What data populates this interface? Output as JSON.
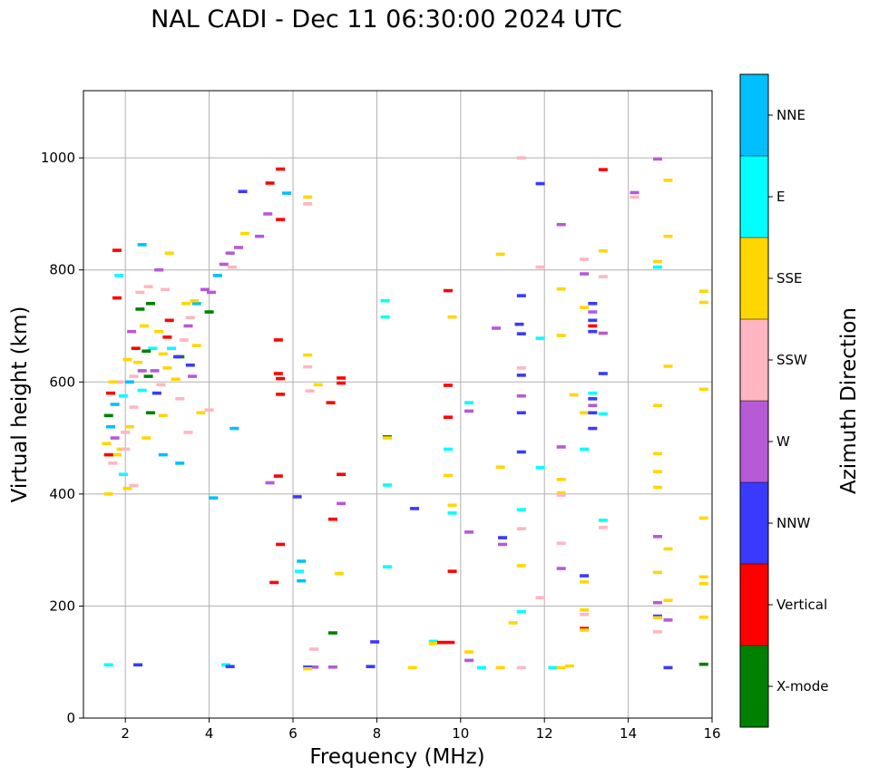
{
  "chart_data": {
    "type": "scatter",
    "title": "NAL CADI - Dec 11 06:30:00 2024 UTC",
    "xlabel": "Frequency (MHz)",
    "ylabel": "Virtual height (km)",
    "xlim": [
      1,
      16
    ],
    "ylim": [
      0,
      1120
    ],
    "xticks": [
      "2",
      "4",
      "6",
      "8",
      "10",
      "12",
      "14",
      "16"
    ],
    "yticks": [
      "0",
      "200",
      "400",
      "600",
      "800",
      "1000"
    ],
    "grid": true,
    "colorbar": {
      "label": "Azimuth Direction",
      "categories": [
        {
          "name": "X-mode",
          "color": "#008000"
        },
        {
          "name": "Vertical",
          "color": "#ff0000"
        },
        {
          "name": "NNW",
          "color": "#3a3aff"
        },
        {
          "name": "W",
          "color": "#b65ad6"
        },
        {
          "name": "SSW",
          "color": "#ffb6c1"
        },
        {
          "name": "SSE",
          "color": "#ffd700"
        },
        {
          "name": "E",
          "color": "#00ffff"
        },
        {
          "name": "NNE",
          "color": "#00bfff"
        }
      ]
    },
    "points": [
      [
        6.2,
        280,
        "NNE"
      ],
      [
        6.2,
        245,
        "NNE"
      ],
      [
        6.15,
        262,
        "E"
      ],
      [
        5.7,
        980,
        "Vertical"
      ],
      [
        5.7,
        890,
        "Vertical"
      ],
      [
        5.85,
        937,
        "NNE"
      ],
      [
        6.35,
        930,
        "SSE"
      ],
      [
        6.35,
        918,
        "SSW"
      ],
      [
        5.65,
        675,
        "Vertical"
      ],
      [
        5.65,
        615,
        "Vertical"
      ],
      [
        5.7,
        606,
        "Vertical"
      ],
      [
        5.7,
        578,
        "Vertical"
      ],
      [
        6.35,
        648,
        "SSE"
      ],
      [
        6.35,
        627,
        "SSW"
      ],
      [
        6.4,
        584,
        "SSW"
      ],
      [
        6.1,
        395,
        "NNW"
      ],
      [
        5.55,
        242,
        "Vertical"
      ],
      [
        5.7,
        310,
        "Vertical"
      ],
      [
        6.6,
        595,
        "SSE"
      ],
      [
        6.9,
        563,
        "Vertical"
      ],
      [
        7.15,
        607,
        "Vertical"
      ],
      [
        7.15,
        598,
        "Vertical"
      ],
      [
        7.15,
        435,
        "Vertical"
      ],
      [
        7.15,
        383,
        "W"
      ],
      [
        6.95,
        355,
        "Vertical"
      ],
      [
        7.1,
        258,
        "SSE"
      ],
      [
        6.95,
        152,
        "X-mode"
      ],
      [
        6.5,
        123,
        "SSW"
      ],
      [
        6.5,
        91,
        "W"
      ],
      [
        6.95,
        91,
        "W"
      ],
      [
        6.35,
        91,
        "NNW"
      ],
      [
        6.35,
        88,
        "SSE"
      ],
      [
        7.85,
        92,
        "NNW"
      ],
      [
        7.95,
        136,
        "NNW"
      ],
      [
        8.2,
        745,
        "E"
      ],
      [
        8.2,
        716,
        "E"
      ],
      [
        8.25,
        502,
        "X-mode"
      ],
      [
        8.25,
        500,
        "SSE"
      ],
      [
        8.25,
        416,
        "E"
      ],
      [
        8.25,
        270,
        "E"
      ],
      [
        8.9,
        374,
        "NNW"
      ],
      [
        8.85,
        90,
        "SSE"
      ],
      [
        9.35,
        137,
        "E"
      ],
      [
        9.35,
        133,
        "SSE"
      ],
      [
        9.55,
        135,
        "Vertical"
      ],
      [
        9.75,
        135,
        "Vertical"
      ],
      [
        9.8,
        262,
        "Vertical"
      ],
      [
        9.8,
        380,
        "SSE"
      ],
      [
        9.8,
        366,
        "E"
      ],
      [
        9.7,
        433,
        "SSE"
      ],
      [
        9.7,
        480,
        "E"
      ],
      [
        9.7,
        537,
        "Vertical"
      ],
      [
        9.7,
        594,
        "Vertical"
      ],
      [
        9.8,
        716,
        "SSE"
      ],
      [
        9.7,
        763,
        "Vertical"
      ],
      [
        10.2,
        563,
        "E"
      ],
      [
        10.2,
        548,
        "W"
      ],
      [
        10.2,
        332,
        "W"
      ],
      [
        10.2,
        118,
        "SSE"
      ],
      [
        10.2,
        103,
        "W"
      ],
      [
        10.5,
        90,
        "E"
      ],
      [
        10.85,
        696,
        "W"
      ],
      [
        10.95,
        828,
        "SSE"
      ],
      [
        10.95,
        448,
        "SSE"
      ],
      [
        11.0,
        322,
        "NNW"
      ],
      [
        11.0,
        310,
        "W"
      ],
      [
        11.25,
        170,
        "SSE"
      ],
      [
        10.95,
        90,
        "SSE"
      ],
      [
        11.45,
        1000,
        "SSW"
      ],
      [
        11.45,
        754,
        "NNW"
      ],
      [
        11.4,
        703,
        "NNW"
      ],
      [
        11.45,
        686,
        "NNW"
      ],
      [
        11.45,
        625,
        "SSW"
      ],
      [
        11.45,
        612,
        "NNW"
      ],
      [
        11.45,
        575,
        "W"
      ],
      [
        11.45,
        545,
        "NNW"
      ],
      [
        11.45,
        475,
        "NNW"
      ],
      [
        11.45,
        372,
        "E"
      ],
      [
        11.45,
        338,
        "SSW"
      ],
      [
        11.45,
        272,
        "SSE"
      ],
      [
        11.45,
        190,
        "E"
      ],
      [
        11.45,
        90,
        "SSW"
      ],
      [
        11.9,
        954,
        "NNW"
      ],
      [
        11.9,
        805,
        "SSW"
      ],
      [
        11.9,
        678,
        "E"
      ],
      [
        11.9,
        447,
        "E"
      ],
      [
        11.9,
        215,
        "SSW"
      ],
      [
        12.2,
        90,
        "E"
      ],
      [
        12.4,
        881,
        "W"
      ],
      [
        12.4,
        766,
        "SSE"
      ],
      [
        12.4,
        683,
        "SSE"
      ],
      [
        12.4,
        484,
        "W"
      ],
      [
        12.4,
        426,
        "SSE"
      ],
      [
        12.4,
        402,
        "SSE"
      ],
      [
        12.4,
        398,
        "SSW"
      ],
      [
        12.4,
        312,
        "SSW"
      ],
      [
        12.4,
        267,
        "W"
      ],
      [
        12.6,
        93,
        "SSE"
      ],
      [
        12.4,
        90,
        "SSE"
      ],
      [
        12.7,
        577,
        "SSE"
      ],
      [
        12.95,
        819,
        "SSW"
      ],
      [
        12.95,
        793,
        "W"
      ],
      [
        12.95,
        733,
        "SSE"
      ],
      [
        12.95,
        545,
        "SSE"
      ],
      [
        12.95,
        480,
        "E"
      ],
      [
        12.95,
        254,
        "NNW"
      ],
      [
        12.95,
        243,
        "SSE"
      ],
      [
        12.95,
        193,
        "SSE"
      ],
      [
        12.95,
        185,
        "SSW"
      ],
      [
        12.95,
        160,
        "Vertical"
      ],
      [
        12.95,
        157,
        "SSE"
      ],
      [
        13.15,
        740,
        "NNW"
      ],
      [
        13.15,
        725,
        "W"
      ],
      [
        13.15,
        710,
        "NNW"
      ],
      [
        13.15,
        700,
        "Vertical"
      ],
      [
        13.15,
        690,
        "NNW"
      ],
      [
        13.15,
        580,
        "E"
      ],
      [
        13.15,
        570,
        "NNW"
      ],
      [
        13.15,
        558,
        "W"
      ],
      [
        13.15,
        545,
        "NNW"
      ],
      [
        13.15,
        517,
        "NNW"
      ],
      [
        13.4,
        979,
        "Vertical"
      ],
      [
        13.4,
        834,
        "SSE"
      ],
      [
        13.4,
        788,
        "SSW"
      ],
      [
        13.4,
        687,
        "W"
      ],
      [
        13.4,
        615,
        "NNW"
      ],
      [
        13.4,
        543,
        "E"
      ],
      [
        13.4,
        353,
        "E"
      ],
      [
        13.4,
        340,
        "SSW"
      ],
      [
        14.15,
        938,
        "W"
      ],
      [
        14.15,
        930,
        "SSW"
      ],
      [
        14.7,
        998,
        "W"
      ],
      [
        14.7,
        815,
        "SSE"
      ],
      [
        14.7,
        805,
        "E"
      ],
      [
        14.7,
        558,
        "SSE"
      ],
      [
        14.7,
        472,
        "SSE"
      ],
      [
        14.7,
        440,
        "SSE"
      ],
      [
        14.7,
        412,
        "SSE"
      ],
      [
        14.7,
        324,
        "W"
      ],
      [
        14.7,
        260,
        "SSE"
      ],
      [
        14.7,
        206,
        "W"
      ],
      [
        14.7,
        182,
        "NNW"
      ],
      [
        14.7,
        179,
        "SSE"
      ],
      [
        14.7,
        154,
        "SSW"
      ],
      [
        14.95,
        960,
        "SSE"
      ],
      [
        14.95,
        860,
        "SSE"
      ],
      [
        14.95,
        628,
        "SSE"
      ],
      [
        14.95,
        302,
        "SSE"
      ],
      [
        14.95,
        210,
        "SSE"
      ],
      [
        14.95,
        175,
        "W"
      ],
      [
        14.95,
        90,
        "NNW"
      ],
      [
        15.8,
        762,
        "SSE"
      ],
      [
        15.8,
        742,
        "SSE"
      ],
      [
        15.8,
        587,
        "SSE"
      ],
      [
        15.8,
        357,
        "SSE"
      ],
      [
        15.8,
        252,
        "SSE"
      ],
      [
        15.8,
        240,
        "SSE"
      ],
      [
        15.8,
        180,
        "SSE"
      ],
      [
        15.8,
        96,
        "X-mode"
      ],
      [
        3.0,
        680,
        "Vertical"
      ],
      [
        3.3,
        645,
        "X-mode"
      ],
      [
        3.5,
        700,
        "W"
      ],
      [
        3.7,
        740,
        "NNE"
      ],
      [
        3.9,
        765,
        "W"
      ],
      [
        4.05,
        760,
        "W"
      ],
      [
        4.2,
        790,
        "NNE"
      ],
      [
        4.35,
        810,
        "W"
      ],
      [
        4.5,
        830,
        "W"
      ],
      [
        4.55,
        805,
        "SSW"
      ],
      [
        4.7,
        840,
        "W"
      ],
      [
        4.85,
        865,
        "SSE"
      ],
      [
        5.2,
        860,
        "W"
      ],
      [
        5.4,
        900,
        "W"
      ],
      [
        5.45,
        955,
        "Vertical"
      ],
      [
        4.0,
        725,
        "X-mode"
      ],
      [
        4.8,
        940,
        "NNW"
      ],
      [
        3.55,
        715,
        "SSW"
      ],
      [
        3.65,
        745,
        "SSE"
      ],
      [
        3.6,
        610,
        "W"
      ],
      [
        3.8,
        545,
        "SSE"
      ],
      [
        4.0,
        550,
        "SSW"
      ],
      [
        3.3,
        570,
        "SSW"
      ],
      [
        3.5,
        510,
        "SSW"
      ],
      [
        3.25,
        645,
        "NNW"
      ],
      [
        2.9,
        540,
        "SSE"
      ],
      [
        2.7,
        620,
        "W"
      ],
      [
        2.55,
        610,
        "X-mode"
      ],
      [
        2.4,
        585,
        "E"
      ],
      [
        2.3,
        635,
        "SSE"
      ],
      [
        2.2,
        555,
        "SSW"
      ],
      [
        2.1,
        520,
        "SSE"
      ],
      [
        2.0,
        510,
        "SSW"
      ],
      [
        1.9,
        480,
        "SSE"
      ],
      [
        1.8,
        470,
        "SSE"
      ],
      [
        1.7,
        455,
        "SSW"
      ],
      [
        1.6,
        470,
        "Vertical"
      ],
      [
        1.65,
        520,
        "NNE"
      ],
      [
        1.55,
        490,
        "SSE"
      ],
      [
        1.75,
        560,
        "NNE"
      ],
      [
        1.85,
        600,
        "SSW"
      ],
      [
        2.05,
        640,
        "SSE"
      ],
      [
        2.15,
        690,
        "W"
      ],
      [
        2.35,
        730,
        "X-mode"
      ],
      [
        2.55,
        770,
        "SSW"
      ],
      [
        2.8,
        800,
        "W"
      ],
      [
        3.05,
        830,
        "SSE"
      ],
      [
        2.4,
        845,
        "NNE"
      ],
      [
        1.8,
        750,
        "Vertical"
      ],
      [
        1.8,
        835,
        "Vertical"
      ],
      [
        1.85,
        790,
        "E"
      ],
      [
        1.6,
        400,
        "SSE"
      ],
      [
        1.6,
        95,
        "E"
      ],
      [
        2.3,
        95,
        "NNW"
      ],
      [
        4.4,
        95,
        "E"
      ],
      [
        4.5,
        92,
        "NNW"
      ],
      [
        4.6,
        517,
        "NNE"
      ],
      [
        5.45,
        420,
        "W"
      ],
      [
        5.65,
        432,
        "Vertical"
      ],
      [
        4.1,
        393,
        "NNE"
      ],
      [
        3.3,
        455,
        "NNE"
      ],
      [
        2.9,
        470,
        "NNE"
      ],
      [
        2.2,
        415,
        "SSW"
      ],
      [
        2.05,
        410,
        "SSE"
      ],
      [
        1.95,
        435,
        "E"
      ],
      [
        2.5,
        500,
        "SSE"
      ],
      [
        2.6,
        545,
        "X-mode"
      ],
      [
        2.75,
        580,
        "NNW"
      ],
      [
        2.85,
        595,
        "SSW"
      ],
      [
        3.0,
        625,
        "SSE"
      ],
      [
        3.1,
        660,
        "E"
      ],
      [
        3.2,
        605,
        "SSE"
      ],
      [
        3.4,
        675,
        "SSW"
      ],
      [
        2.65,
        660,
        "E"
      ],
      [
        2.45,
        700,
        "SSE"
      ],
      [
        2.25,
        660,
        "Vertical"
      ],
      [
        2.1,
        600,
        "NNE"
      ],
      [
        1.95,
        575,
        "E"
      ],
      [
        1.7,
        600,
        "SSE"
      ],
      [
        1.6,
        540,
        "X-mode"
      ],
      [
        1.75,
        500,
        "W"
      ],
      [
        2.5,
        655,
        "X-mode"
      ],
      [
        2.8,
        690,
        "SSE"
      ],
      [
        3.05,
        710,
        "Vertical"
      ],
      [
        3.45,
        740,
        "SSE"
      ],
      [
        2.95,
        765,
        "SSW"
      ],
      [
        2.6,
        740,
        "X-mode"
      ],
      [
        2.35,
        760,
        "SSW"
      ],
      [
        3.7,
        665,
        "SSE"
      ],
      [
        3.55,
        630,
        "NNW"
      ],
      [
        2.0,
        480,
        "SSW"
      ],
      [
        1.65,
        580,
        "Vertical"
      ],
      [
        2.2,
        610,
        "SSW"
      ],
      [
        2.9,
        650,
        "SSE"
      ],
      [
        2.4,
        620,
        "W"
      ]
    ]
  }
}
